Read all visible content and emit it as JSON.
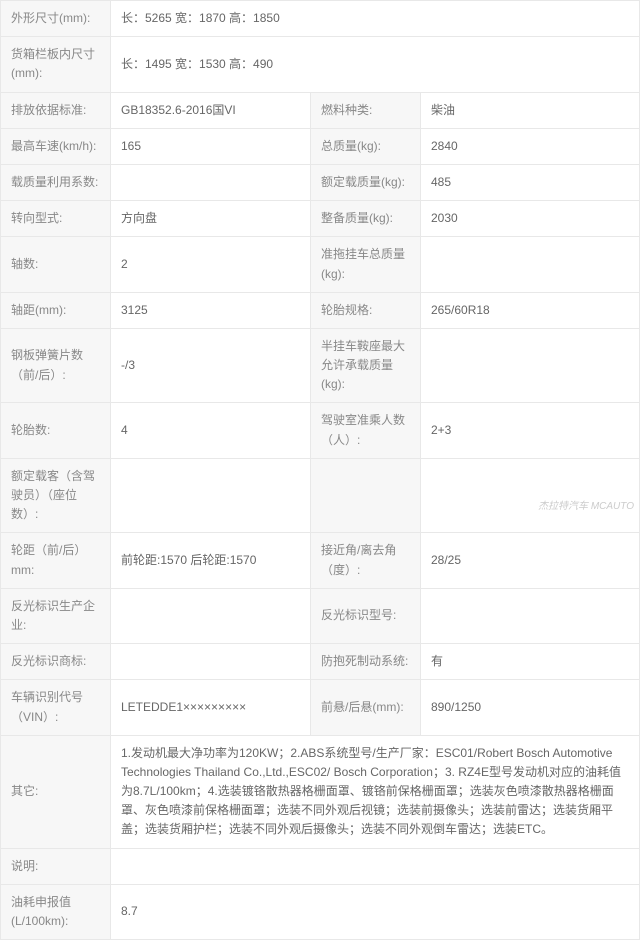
{
  "rows": [
    {
      "type": "2col",
      "l1": "外形尺寸(mm):",
      "v1": "长：5265 宽：1870 高：1850"
    },
    {
      "type": "2col",
      "l1": "货箱栏板内尺寸(mm):",
      "v1": "长：1495 宽：1530 高：490"
    },
    {
      "type": "4col",
      "l1": "排放依据标准:",
      "v1": "GB18352.6-2016国VI",
      "l2": "燃料种类:",
      "v2": "柴油"
    },
    {
      "type": "4col",
      "l1": "最高车速(km/h):",
      "v1": "165",
      "l2": "总质量(kg):",
      "v2": "2840"
    },
    {
      "type": "4col",
      "l1": "载质量利用系数:",
      "v1": "",
      "l2": "额定载质量(kg):",
      "v2": "485"
    },
    {
      "type": "4col",
      "l1": "转向型式:",
      "v1": "方向盘",
      "l2": "整备质量(kg):",
      "v2": "2030"
    },
    {
      "type": "4col",
      "l1": "轴数:",
      "v1": "2",
      "l2": "准拖挂车总质量(kg):",
      "v2": ""
    },
    {
      "type": "4col",
      "l1": "轴距(mm):",
      "v1": "3125",
      "l2": "轮胎规格:",
      "v2": "265/60R18"
    },
    {
      "type": "4col",
      "l1": "钢板弹簧片数（前/后）:",
      "v1": "-/3",
      "l2": "半挂车鞍座最大允许承载质量(kg):",
      "v2": ""
    },
    {
      "type": "4col",
      "l1": "轮胎数:",
      "v1": "4",
      "l2": "驾驶室准乘人数（人）:",
      "v2": "2+3"
    },
    {
      "type": "4col",
      "l1": "额定载客（含驾驶员）（座位数）:",
      "v1": "",
      "l2": "",
      "v2": ""
    },
    {
      "type": "4col",
      "l1": "轮距（前/后）mm:",
      "v1": "前轮距:1570 后轮距:1570",
      "l2": "接近角/离去角（度）:",
      "v2": "28/25"
    },
    {
      "type": "4col",
      "l1": "反光标识生产企业:",
      "v1": "",
      "l2": "反光标识型号:",
      "v2": ""
    },
    {
      "type": "4col",
      "l1": "反光标识商标:",
      "v1": "",
      "l2": "防抱死制动系统:",
      "v2": "有"
    },
    {
      "type": "4col",
      "l1": "车辆识别代号（VIN）:",
      "v1": "LETEDDE1×××××××××",
      "l2": "前悬/后悬(mm):",
      "v2": "890/1250"
    },
    {
      "type": "2col",
      "l1": "其它:",
      "v1": "1.发动机最大净功率为120KW；2.ABS系统型号/生产厂家：ESC01/Robert Bosch Automotive Technologies Thailand Co.,Ltd.,ESC02/ Bosch Corporation；3. RZ4E型号发动机对应的油耗值为8.7L/100km；4.选装镀铬散热器格栅面罩、镀铬前保格栅面罩；选装灰色喷漆散热器格栅面罩、灰色喷漆前保格栅面罩；选装不同外观后视镜；选装前摄像头；选装前雷达；选装货厢平盖；选装货厢护栏；选装不同外观后摄像头；选装不同外观倒车雷达；选装ETC。"
    },
    {
      "type": "2col",
      "l1": "说明:",
      "v1": ""
    },
    {
      "type": "2col",
      "l1": "油耗申报值(L/100km):",
      "v1": "8.7"
    }
  ],
  "watermark": "杰拉特汽车 MCAUTO"
}
